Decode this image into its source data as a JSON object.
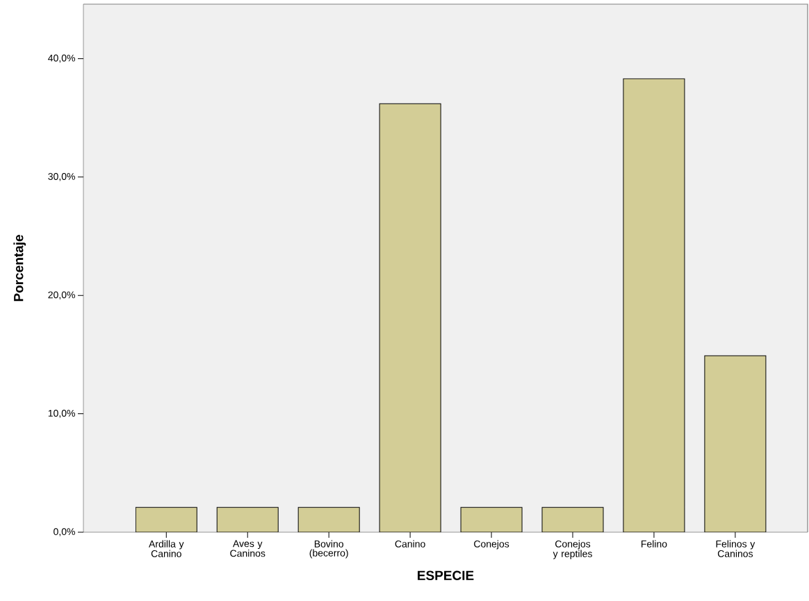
{
  "chart_data": {
    "type": "bar",
    "xlabel": "ESPECIE",
    "ylabel": "Porcentaje",
    "categories": [
      "Ardilla y Canino",
      "Aves y Caninos",
      "Bovino (becerro)",
      "Canino",
      "Conejos",
      "Conejos y reptiles",
      "Felino",
      "Felinos y Caninos"
    ],
    "values": [
      2.1,
      2.1,
      2.1,
      36.2,
      2.1,
      2.1,
      38.3,
      14.9
    ],
    "color": "#d3cd96",
    "ylim": [
      0,
      44.6
    ],
    "yticks": [
      {
        "value": 0,
        "label": "0,0%"
      },
      {
        "value": 10,
        "label": "10,0%"
      },
      {
        "value": 20,
        "label": "20,0%"
      },
      {
        "value": 30,
        "label": "30,0%"
      },
      {
        "value": 40,
        "label": "40,0%"
      }
    ],
    "grid": false
  }
}
